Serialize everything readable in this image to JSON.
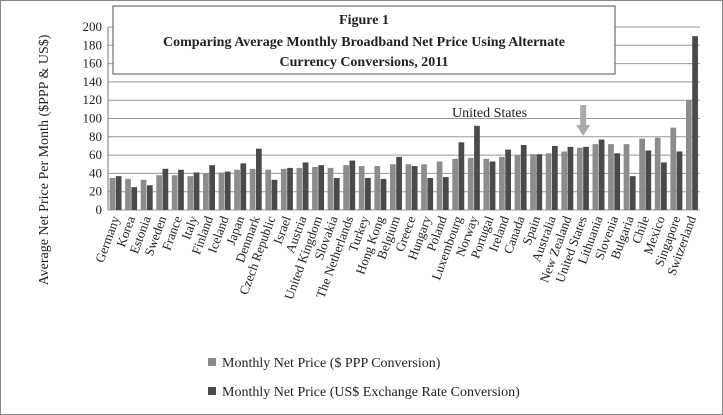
{
  "chart_data": {
    "type": "bar",
    "title": "Figure 1",
    "subtitle": [
      "Comparing Average Monthly Broadband Net Price Using Alternate",
      "Currency Conversions, 2011"
    ],
    "ylabel": "Average  Net Price Per Month ($PPP & US$)",
    "annotation": "United States",
    "categories": [
      "Germany",
      "Korea",
      "Estonia",
      "Sweden",
      "France",
      "Italy",
      "Finland",
      "Iceland",
      "Japan",
      "Denmark",
      "Czech Republic",
      "Israel",
      "Austria",
      "United Kingdom",
      "Slovakia",
      "The Netherlands",
      "Turkey",
      "Hong Kong",
      "Belgium",
      "Greece",
      "Hungary",
      "Poland",
      "Luxembourg",
      "Norway",
      "Portugal",
      "Ireland",
      "Canada",
      "Spain",
      "Australia",
      "New Zealand",
      "United States",
      "Lithuania",
      "Slovenia",
      "Bulgaria",
      "Chile",
      "Mexico",
      "Singapore",
      "Switzerland"
    ],
    "series": [
      {
        "name": "Monthly Net Price ($ PPP Conversion)",
        "color": "#8c8c8c",
        "values": [
          35,
          34,
          33,
          38,
          38,
          37,
          40,
          41,
          44,
          45,
          44,
          45,
          46,
          47,
          46,
          49,
          48,
          48,
          50,
          50,
          50,
          53,
          56,
          57,
          56,
          58,
          60,
          61,
          62,
          64,
          68,
          72,
          72,
          72,
          78,
          79,
          90,
          120
        ]
      },
      {
        "name": "Monthly Net Price (US$ Exchange Rate Conversion)",
        "color": "#4a4a4a",
        "values": [
          37,
          25,
          27,
          45,
          44,
          41,
          49,
          42,
          51,
          67,
          33,
          46,
          52,
          49,
          35,
          54,
          35,
          34,
          58,
          48,
          35,
          36,
          74,
          92,
          53,
          66,
          71,
          61,
          70,
          69,
          69,
          77,
          62,
          37,
          65,
          52,
          64,
          190
        ]
      }
    ],
    "ylim": [
      0,
      200
    ],
    "yticks": [
      0,
      20,
      40,
      60,
      80,
      100,
      120,
      140,
      160,
      180,
      200
    ],
    "grid": true
  }
}
